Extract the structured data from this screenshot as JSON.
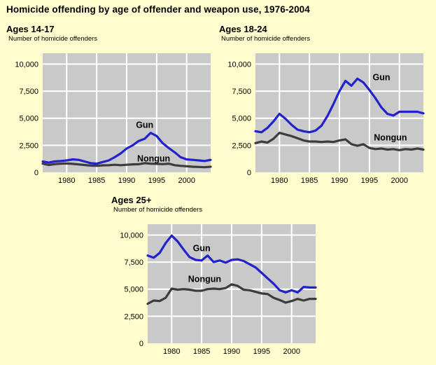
{
  "page": {
    "title": "Homicide offending by age of offender and weapon use, 1976-2004"
  },
  "colors": {
    "page_bg": "#FFFCCD",
    "plot_bg": "#C9C9C9",
    "grid": "#FFFFFF",
    "text": "#000000",
    "gun": "#2222CC",
    "nongun": "#3C3C3C"
  },
  "chart_data": [
    {
      "type": "line",
      "title": "Ages 14-17",
      "ylabel": "Number of homicide offenders",
      "x_start": 1976,
      "x_end": 2004,
      "x_ticks": [
        1980,
        1985,
        1990,
        1995,
        2000
      ],
      "y_ticks": [
        0,
        2500,
        5000,
        7500,
        10000
      ],
      "y_tick_labels": [
        "0",
        "2,500",
        "5,000",
        "7,500",
        "10,000"
      ],
      "ylim": [
        0,
        11000
      ],
      "grid": true,
      "series": [
        {
          "name": "Gun",
          "color": "#2222CC",
          "label_at": [
            1993,
            4400
          ],
          "values": [
            1000,
            900,
            1000,
            1050,
            1100,
            1200,
            1150,
            1000,
            850,
            800,
            950,
            1100,
            1400,
            1750,
            2200,
            2500,
            2900,
            3100,
            3650,
            3350,
            2700,
            2250,
            1850,
            1400,
            1200,
            1150,
            1100,
            1050,
            1150
          ]
        },
        {
          "name": "Nongun",
          "color": "#3C3C3C",
          "label_at": [
            1994.5,
            1300
          ],
          "values": [
            800,
            680,
            760,
            800,
            820,
            780,
            730,
            680,
            620,
            600,
            650,
            660,
            700,
            660,
            700,
            740,
            750,
            850,
            800,
            780,
            760,
            800,
            660,
            600,
            560,
            520,
            500,
            470,
            520
          ]
        }
      ]
    },
    {
      "type": "line",
      "title": "Ages 18-24",
      "ylabel": "Number of homicide offenders",
      "x_start": 1976,
      "x_end": 2004,
      "x_ticks": [
        1980,
        1985,
        1990,
        1995,
        2000
      ],
      "y_ticks": [
        0,
        2500,
        5000,
        7500,
        10000
      ],
      "y_tick_labels": [
        "0",
        "2,500",
        "5,000",
        "7,500",
        "10,000"
      ],
      "ylim": [
        0,
        11000
      ],
      "grid": true,
      "series": [
        {
          "name": "Gun",
          "color": "#2222CC",
          "label_at": [
            1997,
            8800
          ],
          "values": [
            3800,
            3700,
            4100,
            4700,
            5400,
            4950,
            4400,
            3950,
            3800,
            3700,
            3850,
            4300,
            5200,
            6300,
            7500,
            8450,
            8000,
            8650,
            8300,
            7600,
            6850,
            6000,
            5400,
            5250,
            5600,
            5600,
            5600,
            5600,
            5450
          ]
        },
        {
          "name": "Nongun",
          "color": "#3C3C3C",
          "label_at": [
            1998.5,
            3250
          ],
          "values": [
            2700,
            2850,
            2750,
            3100,
            3650,
            3500,
            3350,
            3150,
            2950,
            2850,
            2850,
            2800,
            2850,
            2800,
            2950,
            3050,
            2600,
            2450,
            2600,
            2250,
            2150,
            2200,
            2100,
            2150,
            2050,
            2150,
            2100,
            2200,
            2100
          ]
        }
      ]
    },
    {
      "type": "line",
      "title": "Ages 25+",
      "ylabel": "Number of homicide offenders",
      "x_start": 1976,
      "x_end": 2004,
      "x_ticks": [
        1980,
        1985,
        1990,
        1995,
        2000
      ],
      "y_ticks": [
        0,
        2500,
        5000,
        7500,
        10000
      ],
      "y_tick_labels": [
        "0",
        "2,500",
        "5,000",
        "7,500",
        "10,000"
      ],
      "ylim": [
        0,
        11000
      ],
      "grid": true,
      "series": [
        {
          "name": "Gun",
          "color": "#2222CC",
          "label_at": [
            1985,
            8800
          ],
          "values": [
            8100,
            7900,
            8350,
            9250,
            9950,
            9400,
            8650,
            7950,
            7700,
            7650,
            8100,
            7500,
            7650,
            7450,
            7700,
            7750,
            7600,
            7300,
            7000,
            6500,
            6000,
            5500,
            4900,
            4700,
            4900,
            4700,
            5200,
            5150,
            5150
          ]
        },
        {
          "name": "Nongun",
          "color": "#3C3C3C",
          "label_at": [
            1985.5,
            5950
          ],
          "values": [
            3650,
            3950,
            3900,
            4200,
            5050,
            4950,
            5000,
            4950,
            4850,
            4850,
            5000,
            5050,
            5000,
            5100,
            5450,
            5300,
            4950,
            4900,
            4750,
            4600,
            4550,
            4200,
            4000,
            3750,
            3900,
            4100,
            3950,
            4100,
            4100
          ]
        }
      ]
    }
  ]
}
